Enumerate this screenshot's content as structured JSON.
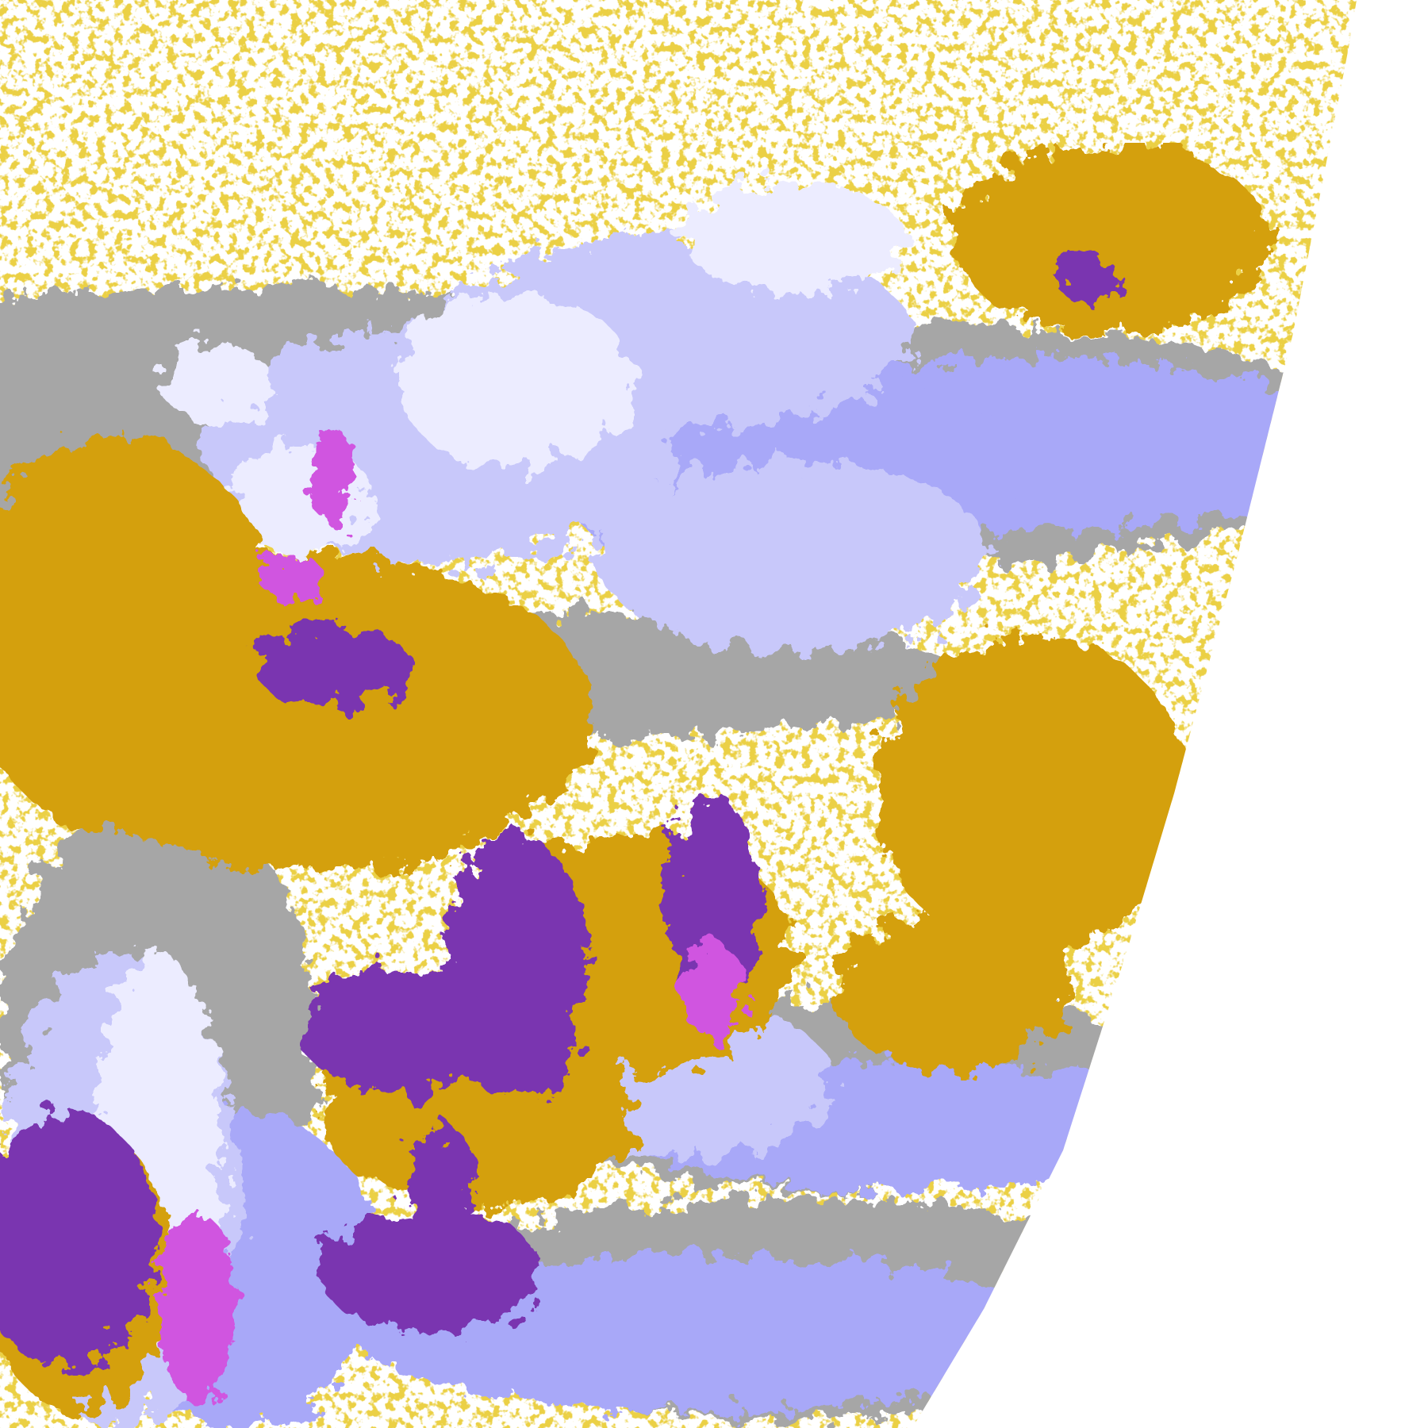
{
  "image": {
    "kind": "satellite cloud classification image",
    "colors": {
      "background": "#ffffff",
      "gold": "#d4a010",
      "purple": "#7a35b0",
      "magenta": "#d055e0",
      "lavender_light": "#ececff",
      "periwinkle": "#a8a8f8",
      "lavender_mid": "#c8c8fa",
      "gray": "#a6a6a6"
    }
  }
}
